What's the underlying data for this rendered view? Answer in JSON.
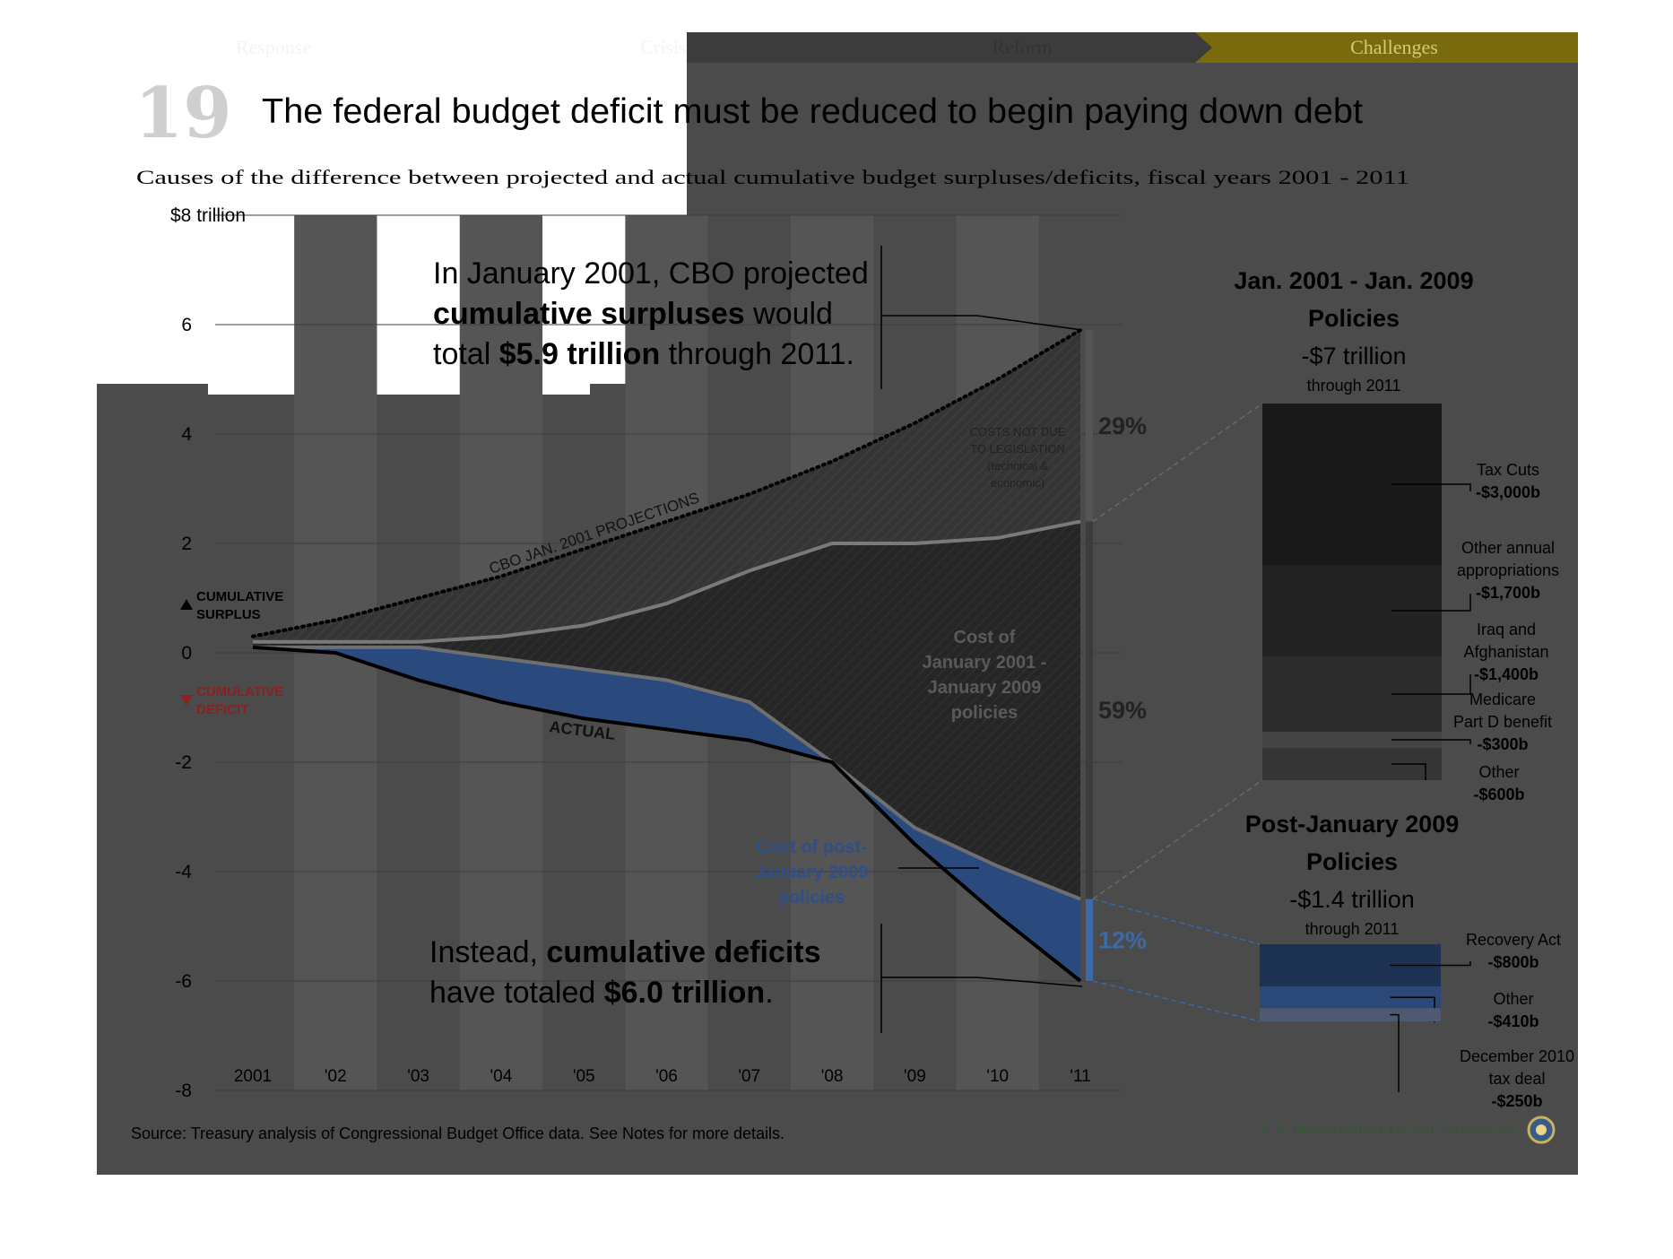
{
  "nav": {
    "items": [
      {
        "label": "Response",
        "active": false
      },
      {
        "label": "Crisis",
        "active": false
      },
      {
        "label": "Reform",
        "active": false
      },
      {
        "label": "Challenges",
        "active": true
      }
    ]
  },
  "header": {
    "number": "19",
    "title": "The federal budget deficit must be reduced to begin paying down debt",
    "subtitle": "Causes of the difference between projected and actual cumulative budget surpluses/deficits, fiscal years 2001 - 2011"
  },
  "annotations": {
    "top": {
      "line1": "In January 2001, CBO projected",
      "line2_bold": "cumulative surpluses",
      "line2_rest": " would",
      "line3_pre": "total ",
      "line3_bold": "$5.9 trillion",
      "line3_rest": " through 2011."
    },
    "bottom": {
      "line1_pre": "Instead, ",
      "line1_bold": "cumulative deficits",
      "line2_pre": "have totaled ",
      "line2_bold": "$6.0 trillion",
      "line2_rest": "."
    },
    "cbo_projections": "CBO JAN. 2001 PROJECTIONS",
    "actual": "ACTUAL",
    "costs_not_due": [
      "COSTS NOT DUE",
      "TO LEGISLATION",
      "(technical &",
      "economic)"
    ],
    "cost_2001_2009": [
      "Cost of",
      "January 2001 -",
      "January 2009",
      "policies"
    ],
    "cost_post_2009": [
      "Cost of post-",
      "January 2009",
      "policies"
    ],
    "surplus_label": [
      "CUMULATIVE",
      "SURPLUS"
    ],
    "deficit_label": [
      "CUMULATIVE",
      "DEFICIT"
    ]
  },
  "chart_data": {
    "type": "area",
    "x": [
      "2001",
      "'02",
      "'03",
      "'04",
      "'05",
      "'06",
      "'07",
      "'08",
      "'09",
      "'10",
      "'11"
    ],
    "y_tick_labels": [
      "$8 trillion",
      "6",
      "4",
      "2",
      "0",
      "-2",
      "-4",
      "-6",
      "-8"
    ],
    "y_ticks": [
      8,
      6,
      4,
      2,
      0,
      -2,
      -4,
      -6,
      -8
    ],
    "ylim": [
      -8,
      8
    ],
    "grid": true,
    "series": [
      {
        "name": "CBO JAN. 2001 PROJECTIONS",
        "values": [
          0.3,
          0.6,
          1.0,
          1.4,
          1.9,
          2.4,
          2.9,
          3.5,
          4.2,
          5.0,
          5.9
        ]
      },
      {
        "values": [
          0.2,
          0.2,
          0.2,
          0.3,
          0.5,
          0.9,
          1.5,
          2.0,
          2.0,
          2.1,
          2.4
        ]
      },
      {
        "values": [
          0.1,
          0.1,
          0.1,
          -0.1,
          -0.3,
          -0.5,
          -0.9,
          -2.0,
          -3.2,
          -3.9,
          -4.5
        ]
      },
      {
        "name": "ACTUAL",
        "values": [
          0.1,
          0.0,
          -0.5,
          -0.9,
          -1.2,
          -1.4,
          -1.6,
          -2.0,
          -3.5,
          -4.8,
          -6.0
        ]
      }
    ],
    "shares": [
      {
        "label": "29%",
        "from": 5.9,
        "to": 2.4,
        "color": "#555555"
      },
      {
        "label": "59%",
        "from": 2.4,
        "to": -4.5,
        "color": "#3c3c3c"
      },
      {
        "label": "12%",
        "from": -4.5,
        "to": -6.0,
        "color": "#3a6aa8"
      }
    ],
    "breakdown_2001_2009": {
      "title": [
        "Jan. 2001 - Jan. 2009",
        "Policies"
      ],
      "total": "-$7 trillion",
      "through": "through 2011",
      "items": [
        {
          "label": [
            "Tax Cuts"
          ],
          "value_label": "-$3,000b",
          "value": 3000,
          "color": "#191919"
        },
        {
          "label": [
            "Other annual",
            "appropriations"
          ],
          "value_label": "-$1,700b",
          "value": 1700,
          "color": "#232323"
        },
        {
          "label": [
            "Iraq and",
            "Afghanistan"
          ],
          "value_label": "-$1,400b",
          "value": 1400,
          "color": "#2c2c2c"
        },
        {
          "label": [
            "Medicare",
            "Part D benefit"
          ],
          "value_label": "-$300b",
          "value": 300,
          "color": "#444444"
        },
        {
          "label": [
            "Other"
          ],
          "value_label": "-$600b",
          "value": 600,
          "color": "#353535"
        }
      ]
    },
    "breakdown_post_2009": {
      "title": [
        "Post-January 2009",
        "Policies"
      ],
      "total": "-$1.4 trillion",
      "through": "through 2011",
      "items": [
        {
          "label": [
            "Recovery Act"
          ],
          "value_label": "-$800b",
          "value": 800,
          "color": "#1d3152"
        },
        {
          "label": [
            "Other"
          ],
          "value_label": "-$410b",
          "value": 410,
          "color": "#2a4878"
        },
        {
          "label": [
            "December 2010",
            "tax deal"
          ],
          "value_label": "-$250b",
          "value": 250,
          "color": "#4d5a70"
        }
      ]
    }
  },
  "footer": {
    "source": "Source: Treasury analysis of Congressional Budget Office data. See Notes for more details.",
    "agency": "U.S. DEPARTMENT OF THE TREASURY"
  },
  "colors": {
    "panel": "#4b4b4b",
    "nav_active": "#7a6a0e",
    "nav_active_text": "#d7c879",
    "deficit_red": "#8b2020",
    "post_blue": "#2e4f8a",
    "agency_green": "#2f5a2e"
  }
}
